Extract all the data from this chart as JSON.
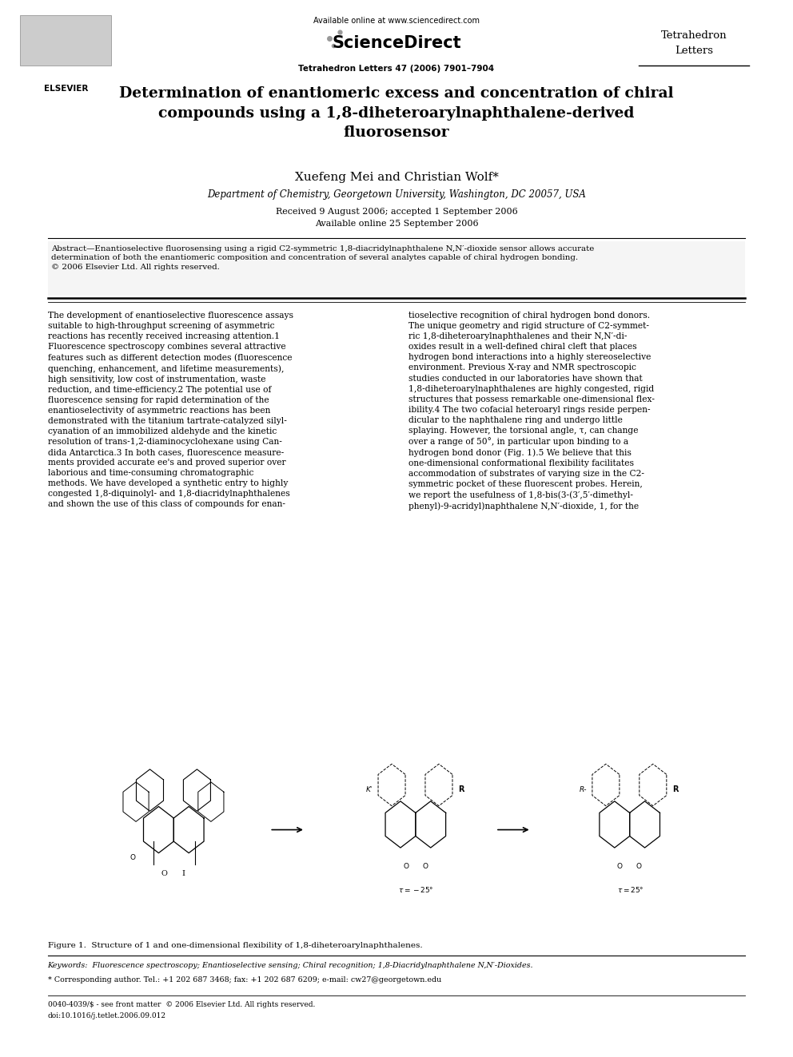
{
  "background_color": "#ffffff",
  "page_width": 9.92,
  "page_height": 13.23,
  "header": {
    "available_online": "Available online at www.sciencedirect.com",
    "sciencedirect": "ScienceDirect",
    "journal_name": "Tetrahedron\nLetters",
    "journal_info": "Tetrahedron Letters 47 (2006) 7901–7904",
    "elsevier": "ELSEVIER"
  },
  "title": "Determination of enantiomeric excess and concentration of chiral\ncompounds using a 1,8-diheteroarylnaphthalene-derived\nfluorosensor",
  "authors": "Xuefeng Mei and Christian Wolf*",
  "affiliation": "Department of Chemistry, Georgetown University, Washington, DC 20057, USA",
  "received": "Received 9 August 2006; accepted 1 September 2006",
  "available": "Available online 25 September 2006",
  "abstract_text": "Abstract—Enantioselective fluorosensing using a rigid C2-symmetric 1,8-diacridylnaphthalene N,N′-dioxide sensor allows accurate\ndetermination of both the enantiomeric composition and concentration of several analytes capable of chiral hydrogen bonding.\n© 2006 Elsevier Ltd. All rights reserved.",
  "body_left": "The development of enantioselective fluorescence assays\nsuitable to high-throughput screening of asymmetric\nreactions has recently received increasing attention.1\nFluorescence spectroscopy combines several attractive\nfeatures such as different detection modes (fluorescence\nquenching, enhancement, and lifetime measurements),\nhigh sensitivity, low cost of instrumentation, waste\nreduction, and time-efficiency.2 The potential use of\nfluorescence sensing for rapid determination of the\nenantioselectivity of asymmetric reactions has been\ndemonstrated with the titanium tartrate-catalyzed silyl-\ncyanation of an immobilized aldehyde and the kinetic\nresolution of trans-1,2-diaminocyclohexane using Can-\ndida Antarctica.3 In both cases, fluorescence measure-\nments provided accurate ee's and proved superior over\nlaborious and time-consuming chromatographic\nmethods. We have developed a synthetic entry to highly\ncongested 1,8-diquinolyl- and 1,8-diacridylnaphthalenes\nand shown the use of this class of compounds for enan-",
  "body_right": "tioselective recognition of chiral hydrogen bond donors.\nThe unique geometry and rigid structure of C2-symmet-\nric 1,8-diheteroarylnaphthalenes and their N,N′-di-\noxides result in a well-defined chiral cleft that places\nhydrogen bond interactions into a highly stereoselective\nenvironment. Previous X-ray and NMR spectroscopic\nstudies conducted in our laboratories have shown that\n1,8-diheteroarylnaphthalenes are highly congested, rigid\nstructures that possess remarkable one-dimensional flex-\nibility.4 The two cofacial heteroaryl rings reside perpen-\ndicular to the naphthalene ring and undergo little\nsplaying. However, the torsional angle, τ, can change\nover a range of 50°, in particular upon binding to a\nhydrogen bond donor (Fig. 1).5 We believe that this\none-dimensional conformational flexibility facilitates\naccommodation of substrates of varying size in the C2-\nsymmetric pocket of these fluorescent probes. Herein,\nwe report the usefulness of 1,8-bis(3-(3′,5′-dimethyl-\nphenyl)-9-acridyl)naphthalene N,N′-dioxide, 1, for the",
  "figure_caption": "Figure 1.  Structure of 1 and one-dimensional flexibility of 1,8-diheteroarylnaphthalenes.",
  "keywords": "Keywords:  Fluorescence spectroscopy; Enantioselective sensing; Chiral recognition; 1,8-Diacridylnaphthalene N,N′-Dioxides.",
  "corresponding": "* Corresponding author. Tel.: +1 202 687 3468; fax: +1 202 687 6209; e-mail: cw27@georgetown.edu",
  "copyright_line1": "0040-4039/$ - see front matter  © 2006 Elsevier Ltd. All rights reserved.",
  "copyright_line2": "doi:10.1016/j.tetlet.2006.09.012"
}
